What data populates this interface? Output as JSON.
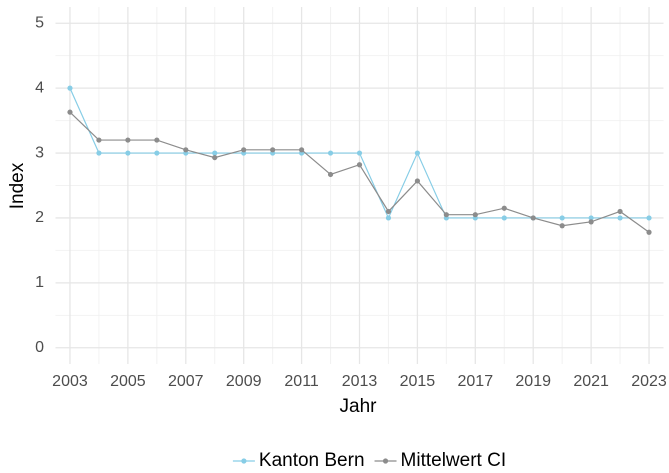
{
  "chart_data": {
    "type": "line",
    "xlabel": "Jahr",
    "ylabel": "Index",
    "x": [
      2003,
      2004,
      2005,
      2006,
      2007,
      2008,
      2009,
      2010,
      2011,
      2012,
      2013,
      2014,
      2015,
      2016,
      2017,
      2018,
      2019,
      2020,
      2021,
      2022,
      2023
    ],
    "series": [
      {
        "name": "Kanton Bern",
        "color": "#87cde6",
        "values": [
          4,
          3,
          3,
          3,
          3,
          3,
          3,
          3,
          3,
          3,
          3,
          2,
          3,
          2,
          2,
          2,
          2,
          2,
          2,
          2,
          2
        ]
      },
      {
        "name": "Mittelwert CI",
        "color": "#8c8c8c",
        "values": [
          3.63,
          3.2,
          3.2,
          3.2,
          3.05,
          2.93,
          3.05,
          3.05,
          3.05,
          2.67,
          2.82,
          2.1,
          2.57,
          2.05,
          2.05,
          2.15,
          2.0,
          1.88,
          1.94,
          2.1,
          1.78
        ]
      }
    ],
    "xlim": [
      2002.5,
      2023.5
    ],
    "xticks": [
      2003,
      2005,
      2007,
      2009,
      2011,
      2013,
      2015,
      2017,
      2019,
      2021,
      2023
    ],
    "x_minor_ticks": [
      2004,
      2006,
      2008,
      2010,
      2012,
      2014,
      2016,
      2018,
      2020,
      2022
    ],
    "ylim": [
      -0.25,
      5.25
    ],
    "yticks": [
      0,
      1,
      2,
      3,
      4,
      5
    ],
    "y_minor_ticks": [
      0.5,
      1.5,
      2.5,
      3.5,
      4.5
    ],
    "grid": true,
    "legend": "bottom"
  }
}
